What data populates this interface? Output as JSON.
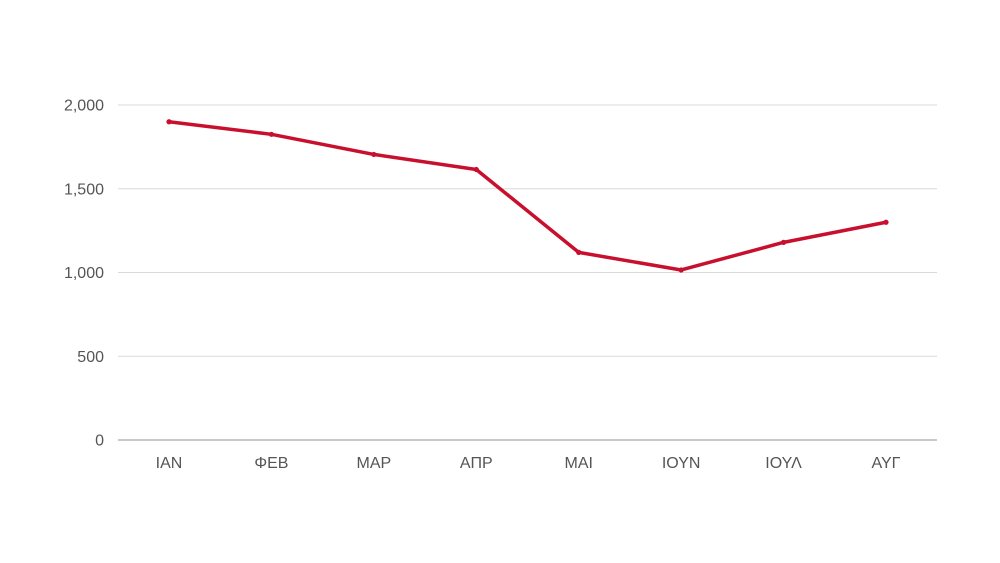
{
  "chart_data": {
    "type": "line",
    "title": "",
    "xlabel": "",
    "ylabel": "",
    "categories": [
      "ΙΑΝ",
      "ΦΕΒ",
      "ΜΑΡ",
      "ΑΠΡ",
      "ΜΑΙ",
      "ΙΟΥΝ",
      "ΙΟΥΛ",
      "ΑΥΓ"
    ],
    "series": [
      {
        "values": [
          1900,
          1825,
          1705,
          1615,
          1120,
          1015,
          1180,
          1300
        ],
        "color": "#c8102e"
      }
    ],
    "ylim": [
      0,
      2000
    ],
    "yticks": [
      {
        "value": 0,
        "label": "0"
      },
      {
        "value": 500,
        "label": "500"
      },
      {
        "value": 1000,
        "label": "1,000"
      },
      {
        "value": 1500,
        "label": "1,500"
      },
      {
        "value": 2000,
        "label": "2,000"
      }
    ],
    "grid": true,
    "legend": "none"
  }
}
